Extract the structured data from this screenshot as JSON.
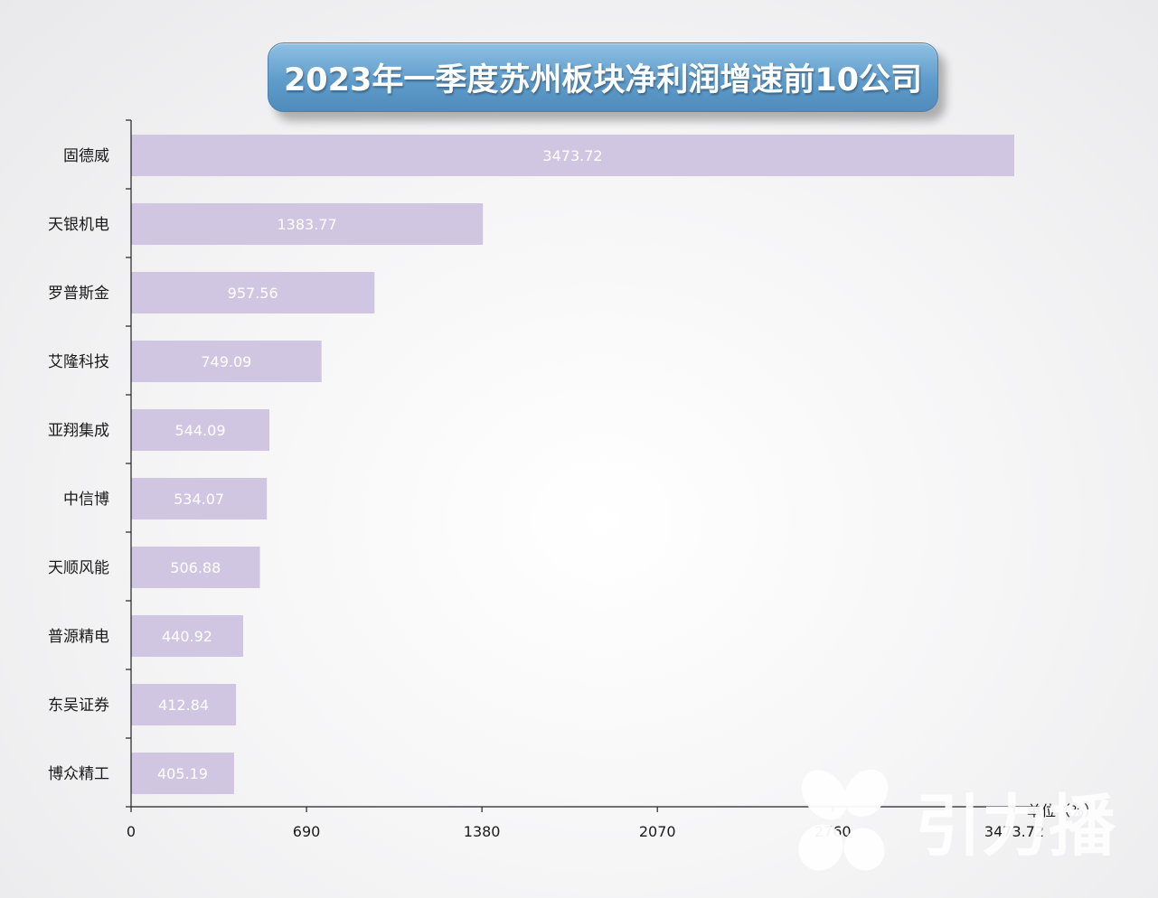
{
  "chart_data": {
    "type": "bar",
    "orientation": "horizontal",
    "title": "2023年一季度苏州板块净利润增速前10公司",
    "unit_label": "单位（%）",
    "categories": [
      "固德威",
      "天银机电",
      "罗普斯金",
      "艾隆科技",
      "亚翔集成",
      "中信博",
      "天顺风能",
      "普源精电",
      "东吴证券",
      "博众精工"
    ],
    "values": [
      3473.72,
      1383.77,
      957.56,
      749.09,
      544.09,
      534.07,
      506.88,
      440.92,
      412.84,
      405.19
    ],
    "value_labels": [
      "3473.72",
      "1383.77",
      "957.56",
      "749.09",
      "544.09",
      "534.07",
      "506.88",
      "440.92",
      "412.84",
      "405.19"
    ],
    "x_ticks": [
      "0",
      "690",
      "1380",
      "2070",
      "2760",
      "3473.72"
    ],
    "x_tick_values": [
      0,
      690,
      1380,
      2070,
      2760,
      3473.72
    ],
    "xlim": [
      0,
      3473.72
    ],
    "bar_color": "#d1c6e2",
    "grid": false,
    "legend": "none"
  },
  "watermark": {
    "text": "引力播",
    "icon": "petal-logo-icon"
  }
}
